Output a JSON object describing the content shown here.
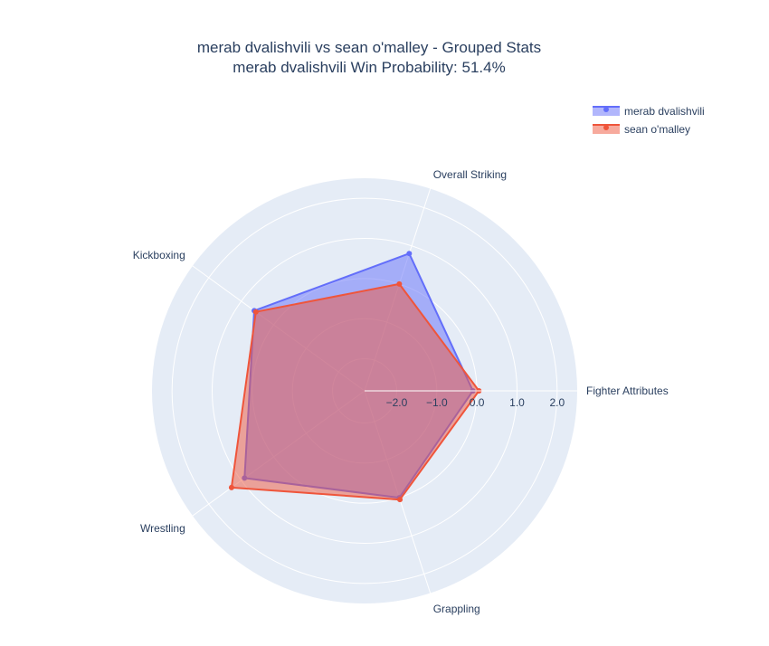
{
  "chart_data": {
    "type": "radar",
    "title": "merab dvalishvili vs sean o'malley - Grouped Stats",
    "subtitle": "merab dvalishvili Win Probability: 51.4%",
    "categories": [
      "Fighter Attributes",
      "Overall Striking",
      "Kickboxing",
      "Wrestling",
      "Grappling"
    ],
    "radial_range": [
      -2.8,
      2.5
    ],
    "radial_ticks": [
      -2,
      -1,
      0,
      1,
      2
    ],
    "radial_tick_labels": [
      "−2.0",
      "−1.0",
      "0.0",
      "1.0",
      "2.0"
    ],
    "series": [
      {
        "name": "merab dvalishvili",
        "color": "#636efa",
        "values": [
          -0.1,
          0.8,
          0.6,
          0.9,
          0.0
        ]
      },
      {
        "name": "sean o'malley",
        "color": "#ef553b",
        "values": [
          0.05,
          0.0,
          0.55,
          1.3,
          0.05
        ]
      }
    ],
    "legend_position": "top-right",
    "grid": true,
    "background_color": "#e5ecf6"
  }
}
